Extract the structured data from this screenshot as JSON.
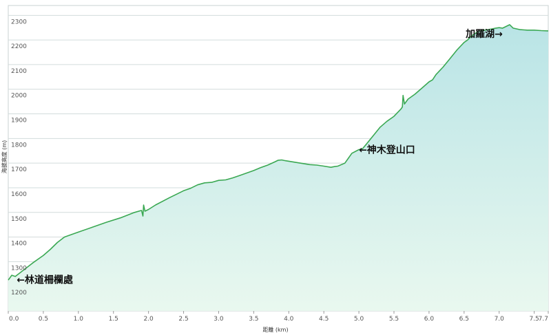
{
  "chart_data": {
    "type": "area",
    "title": "",
    "xlabel": "距離 (km)",
    "ylabel": "海拔高度 (m)",
    "xlim": [
      0,
      7.7
    ],
    "ylim": [
      1100,
      2340
    ],
    "x_ticks": [
      0.0,
      0.5,
      1.0,
      1.5,
      2.0,
      2.5,
      3.0,
      3.5,
      4.0,
      4.5,
      5.0,
      5.5,
      6.0,
      6.5,
      7.0,
      7.5,
      7.7
    ],
    "x_tick_labels": [
      "0.0",
      "0.5",
      "1.0",
      "1.5",
      "2.0",
      "2.5",
      "3.0",
      "3.5",
      "4.0",
      "4.5",
      "5.0",
      "5.5",
      "6.0",
      "6.5",
      "7.0",
      "7.5",
      "7.7"
    ],
    "y_ticks": [
      1200,
      1300,
      1400,
      1500,
      1600,
      1700,
      1800,
      1900,
      2000,
      2100,
      2200,
      2300
    ],
    "y_tick_labels": [
      "1200",
      "1300",
      "1400",
      "1500",
      "1600",
      "1700",
      "1800",
      "1900",
      "2000",
      "2100",
      "2200",
      "2300"
    ],
    "grid": true,
    "colors": {
      "line": "#3aa852",
      "fill_top": "#b9e4e6",
      "fill_bottom": "#e9f8ef",
      "grid": "#d2dcdc"
    },
    "series": [
      {
        "x": [
          0.0,
          0.05,
          0.1,
          0.2,
          0.35,
          0.5,
          0.6,
          0.7,
          0.8,
          0.9,
          1.0,
          1.2,
          1.4,
          1.6,
          1.8,
          1.9,
          1.92,
          1.93,
          1.95,
          2.0,
          2.1,
          2.3,
          2.5,
          2.6,
          2.7,
          2.8,
          2.9,
          3.0,
          3.1,
          3.2,
          3.3,
          3.4,
          3.5,
          3.6,
          3.7,
          3.8,
          3.85,
          3.9,
          3.95,
          4.1,
          4.3,
          4.4,
          4.5,
          4.6,
          4.65,
          4.7,
          4.8,
          4.85,
          4.9,
          5.0,
          5.05,
          5.1,
          5.2,
          5.3,
          5.4,
          5.5,
          5.6,
          5.62,
          5.63,
          5.65,
          5.7,
          5.8,
          5.9,
          6.0,
          6.05,
          6.1,
          6.2,
          6.3,
          6.4,
          6.5,
          6.55,
          6.6,
          6.7,
          6.8,
          6.9,
          6.95,
          7.0,
          7.05,
          7.1,
          7.15,
          7.2,
          7.3,
          7.4,
          7.5,
          7.6,
          7.7
        ],
        "y": [
          1225,
          1245,
          1240,
          1262,
          1295,
          1325,
          1350,
          1378,
          1400,
          1410,
          1420,
          1440,
          1460,
          1478,
          1500,
          1508,
          1485,
          1530,
          1505,
          1512,
          1530,
          1560,
          1588,
          1598,
          1612,
          1620,
          1622,
          1630,
          1632,
          1640,
          1650,
          1660,
          1670,
          1682,
          1692,
          1705,
          1712,
          1713,
          1710,
          1703,
          1694,
          1692,
          1688,
          1683,
          1686,
          1688,
          1700,
          1720,
          1740,
          1755,
          1758,
          1775,
          1810,
          1845,
          1870,
          1890,
          1920,
          1928,
          1975,
          1940,
          1960,
          1980,
          2005,
          2030,
          2038,
          2060,
          2090,
          2125,
          2160,
          2190,
          2200,
          2215,
          2235,
          2240,
          2245,
          2248,
          2250,
          2248,
          2255,
          2262,
          2248,
          2242,
          2240,
          2240,
          2238,
          2237
        ]
      }
    ],
    "annotations": [
      {
        "text": "←林道柵欄處",
        "x": 0.12,
        "y": 1227
      },
      {
        "text": "←神木登山口",
        "x": 5.0,
        "y": 1755
      },
      {
        "text": "加羅湖→",
        "x": 7.05,
        "y": 2225
      }
    ]
  }
}
